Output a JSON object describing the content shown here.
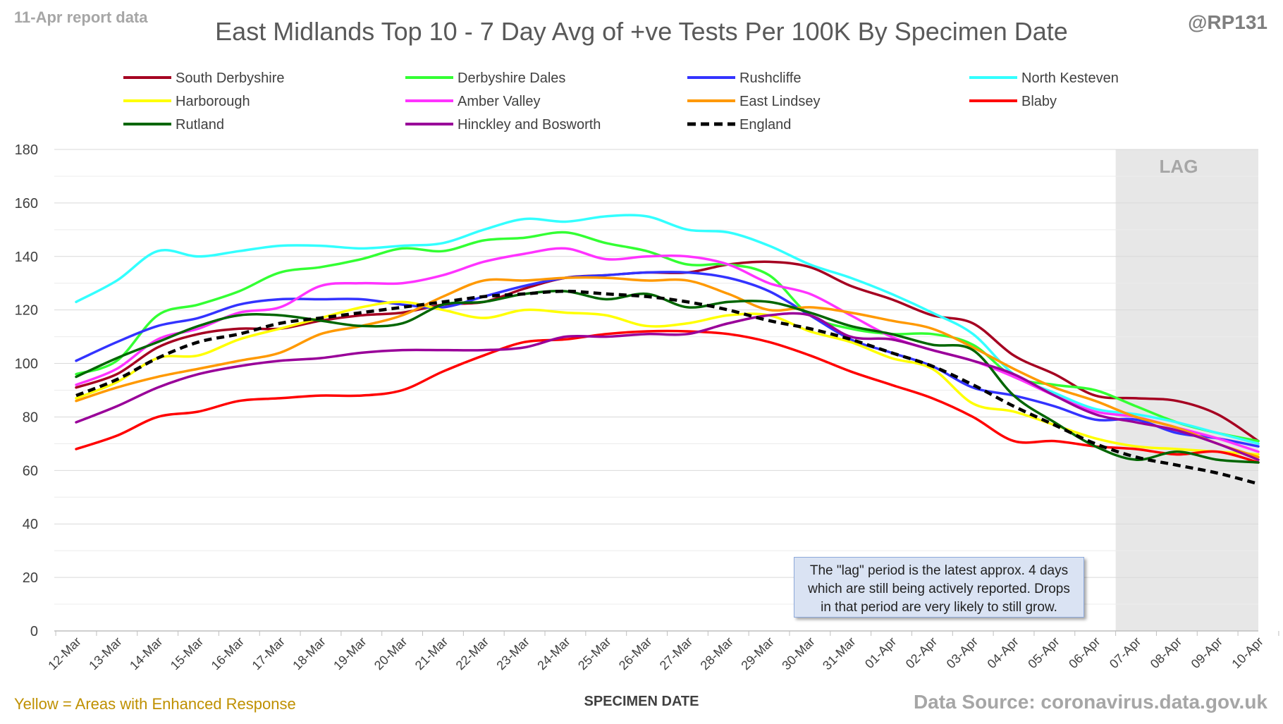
{
  "header": {
    "report_note": "11-Apr report data",
    "handle": "@RP131",
    "footnote": "Yellow = Areas with Enhanced Response",
    "source": "Data Source: coronavirus.data.gov.uk"
  },
  "annotation": {
    "text": "The \"lag\" period is the latest approx. 4 days which are still being actively reported. Drops in that period are very likely to still grow."
  },
  "chart_data": {
    "type": "line",
    "title": "East Midlands Top 10 - 7 Day Avg of +ve Tests Per 100K By Specimen Date",
    "xlabel": "SPECIMEN DATE",
    "ylabel": "",
    "ylim": [
      0,
      180
    ],
    "yticks": [
      0,
      20,
      40,
      60,
      80,
      100,
      120,
      140,
      160,
      180
    ],
    "grid": true,
    "legend": "top",
    "lag_label": "LAG",
    "lag_start": "07-Apr",
    "x": [
      "12-Mar",
      "13-Mar",
      "14-Mar",
      "15-Mar",
      "16-Mar",
      "17-Mar",
      "18-Mar",
      "19-Mar",
      "20-Mar",
      "21-Mar",
      "22-Mar",
      "23-Mar",
      "24-Mar",
      "25-Mar",
      "26-Mar",
      "27-Mar",
      "28-Mar",
      "29-Mar",
      "30-Mar",
      "31-Mar",
      "01-Apr",
      "02-Apr",
      "03-Apr",
      "04-Apr",
      "05-Apr",
      "06-Apr",
      "07-Apr",
      "08-Apr",
      "09-Apr",
      "10-Apr"
    ],
    "series": [
      {
        "name": "South Derbyshire",
        "color": "#a50021",
        "dashed": false,
        "values": [
          91,
          96,
          106,
          111,
          113,
          113,
          116,
          118,
          119,
          122,
          123,
          128,
          132,
          133,
          134,
          134,
          137,
          138,
          136,
          129,
          124,
          118,
          115,
          103,
          96,
          88,
          87,
          86,
          81,
          71
        ]
      },
      {
        "name": "Derbyshire Dales",
        "color": "#33ff33",
        "dashed": false,
        "values": [
          96,
          101,
          118,
          122,
          127,
          134,
          136,
          139,
          143,
          142,
          146,
          147,
          149,
          145,
          142,
          137,
          137,
          133,
          118,
          113,
          111,
          111,
          107,
          95,
          92,
          90,
          84,
          78,
          74,
          71
        ]
      },
      {
        "name": "Rushcliffe",
        "color": "#3333ff",
        "dashed": false,
        "values": [
          101,
          108,
          114,
          117,
          122,
          124,
          124,
          124,
          122,
          121,
          125,
          129,
          132,
          133,
          134,
          134,
          132,
          127,
          118,
          109,
          104,
          99,
          91,
          88,
          84,
          79,
          79,
          74,
          72,
          69
        ]
      },
      {
        "name": "North Kesteven",
        "color": "#33ffff",
        "dashed": false,
        "values": [
          123,
          131,
          142,
          140,
          142,
          144,
          144,
          143,
          144,
          145,
          150,
          154,
          153,
          155,
          155,
          150,
          149,
          144,
          137,
          132,
          126,
          119,
          111,
          96,
          89,
          83,
          81,
          78,
          74,
          70
        ]
      },
      {
        "name": "Harborough",
        "color": "#ffff00",
        "dashed": false,
        "values": [
          87,
          93,
          102,
          103,
          109,
          113,
          117,
          121,
          123,
          120,
          117,
          120,
          119,
          118,
          114,
          115,
          118,
          118,
          112,
          108,
          102,
          98,
          85,
          82,
          77,
          72,
          69,
          68,
          67,
          66
        ]
      },
      {
        "name": "Amber Valley",
        "color": "#ff33ff",
        "dashed": false,
        "values": [
          92,
          98,
          109,
          113,
          119,
          121,
          129,
          130,
          130,
          133,
          138,
          141,
          143,
          139,
          140,
          140,
          137,
          130,
          126,
          118,
          110,
          105,
          101,
          95,
          88,
          82,
          80,
          76,
          72,
          67
        ]
      },
      {
        "name": "East Lindsey",
        "color": "#ff9900",
        "dashed": false,
        "values": [
          86,
          91,
          95,
          98,
          101,
          104,
          111,
          114,
          118,
          125,
          131,
          131,
          132,
          132,
          131,
          131,
          126,
          120,
          121,
          119,
          116,
          113,
          106,
          98,
          91,
          86,
          80,
          76,
          70,
          65
        ]
      },
      {
        "name": "Blaby",
        "color": "#ff0000",
        "dashed": false,
        "values": [
          68,
          73,
          80,
          82,
          86,
          87,
          88,
          88,
          90,
          97,
          103,
          108,
          109,
          111,
          112,
          112,
          111,
          108,
          103,
          97,
          92,
          87,
          80,
          71,
          71,
          69,
          68,
          66,
          67,
          63
        ]
      },
      {
        "name": "Rutland",
        "color": "#006600",
        "dashed": false,
        "values": [
          95,
          102,
          108,
          114,
          118,
          118,
          116,
          114,
          115,
          122,
          123,
          126,
          127,
          124,
          126,
          121,
          123,
          123,
          119,
          114,
          111,
          107,
          105,
          88,
          78,
          69,
          64,
          67,
          64,
          63
        ]
      },
      {
        "name": "Hinckley and Bosworth",
        "color": "#990099",
        "dashed": false,
        "values": [
          78,
          84,
          91,
          96,
          99,
          101,
          102,
          104,
          105,
          105,
          105,
          106,
          110,
          110,
          111,
          111,
          115,
          118,
          118,
          110,
          109,
          105,
          101,
          96,
          88,
          81,
          78,
          75,
          70,
          64
        ]
      },
      {
        "name": "England",
        "color": "#000000",
        "dashed": true,
        "values": [
          88,
          94,
          102,
          108,
          111,
          115,
          117,
          119,
          121,
          123,
          125,
          126,
          127,
          126,
          125,
          123,
          120,
          116,
          113,
          109,
          104,
          99,
          92,
          84,
          77,
          70,
          65,
          62,
          59,
          55
        ]
      }
    ]
  }
}
